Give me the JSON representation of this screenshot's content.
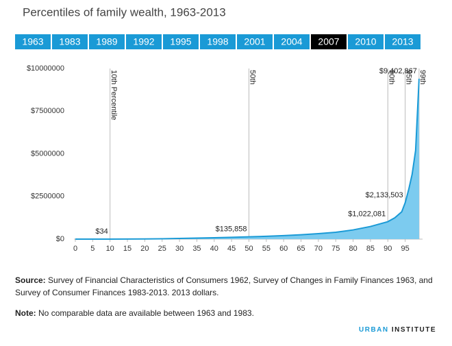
{
  "header": {
    "title": "Percentiles of family wealth, 1963-2013"
  },
  "years": [
    "1963",
    "1983",
    "1989",
    "1992",
    "1995",
    "1998",
    "2001",
    "2004",
    "2007",
    "2010",
    "2013"
  ],
  "selected": "2007",
  "chart_data": {
    "type": "area",
    "x": [
      0,
      5,
      10,
      15,
      20,
      25,
      30,
      35,
      40,
      45,
      50,
      55,
      60,
      65,
      70,
      75,
      80,
      85,
      90,
      92,
      94,
      95,
      96,
      97,
      98,
      99
    ],
    "series": [
      {
        "color": "#1a9ad6",
        "fill": "#7ccbef",
        "values": [
          0,
          0,
          34,
          3000,
          10000,
          22000,
          38000,
          58000,
          80000,
          105000,
          135858,
          165000,
          205000,
          255000,
          320000,
          400000,
          540000,
          740000,
          1022081,
          1250000,
          1600000,
          2133503,
          2900000,
          3800000,
          5200000,
          9402867
        ],
        "value_labels": [
          null,
          null,
          "$34",
          null,
          null,
          null,
          null,
          null,
          null,
          null,
          "$135,858",
          null,
          null,
          null,
          null,
          null,
          null,
          null,
          "$1,022,081",
          null,
          null,
          "$2,133,503",
          null,
          null,
          null,
          "$9,402,867"
        ]
      }
    ],
    "markers": [
      {
        "x": 10,
        "label": "10th Percentile"
      },
      {
        "x": 50,
        "label": "50th"
      },
      {
        "x": 90,
        "label": "90th"
      },
      {
        "x": 95,
        "label": "95th"
      },
      {
        "x": 99,
        "label": "99th"
      }
    ],
    "xlim": [
      0,
      100
    ],
    "xticks": [
      0,
      5,
      10,
      15,
      20,
      25,
      30,
      35,
      40,
      45,
      50,
      55,
      60,
      65,
      70,
      75,
      80,
      85,
      90,
      95
    ],
    "ylim": [
      0,
      10000000
    ],
    "yticks": [
      {
        "value": 0,
        "label": "$0"
      },
      {
        "value": 2500000,
        "label": "$2500000"
      },
      {
        "value": 5000000,
        "label": "$5000000"
      },
      {
        "value": 7500000,
        "label": "$7500000"
      },
      {
        "value": 10000000,
        "label": "$10000000"
      }
    ]
  },
  "source": {
    "label": "Source:",
    "text": "Survey of Financial Characteristics of Consumers 1962, Survey of Changes in Family Finances 1963, and Survey of Consumer Finances 1983-2013. 2013 dollars."
  },
  "note": {
    "label": "Note:",
    "text": "No comparable data are available between 1963 and 1983."
  },
  "brand": [
    "URBAN",
    "INSTITUTE"
  ]
}
